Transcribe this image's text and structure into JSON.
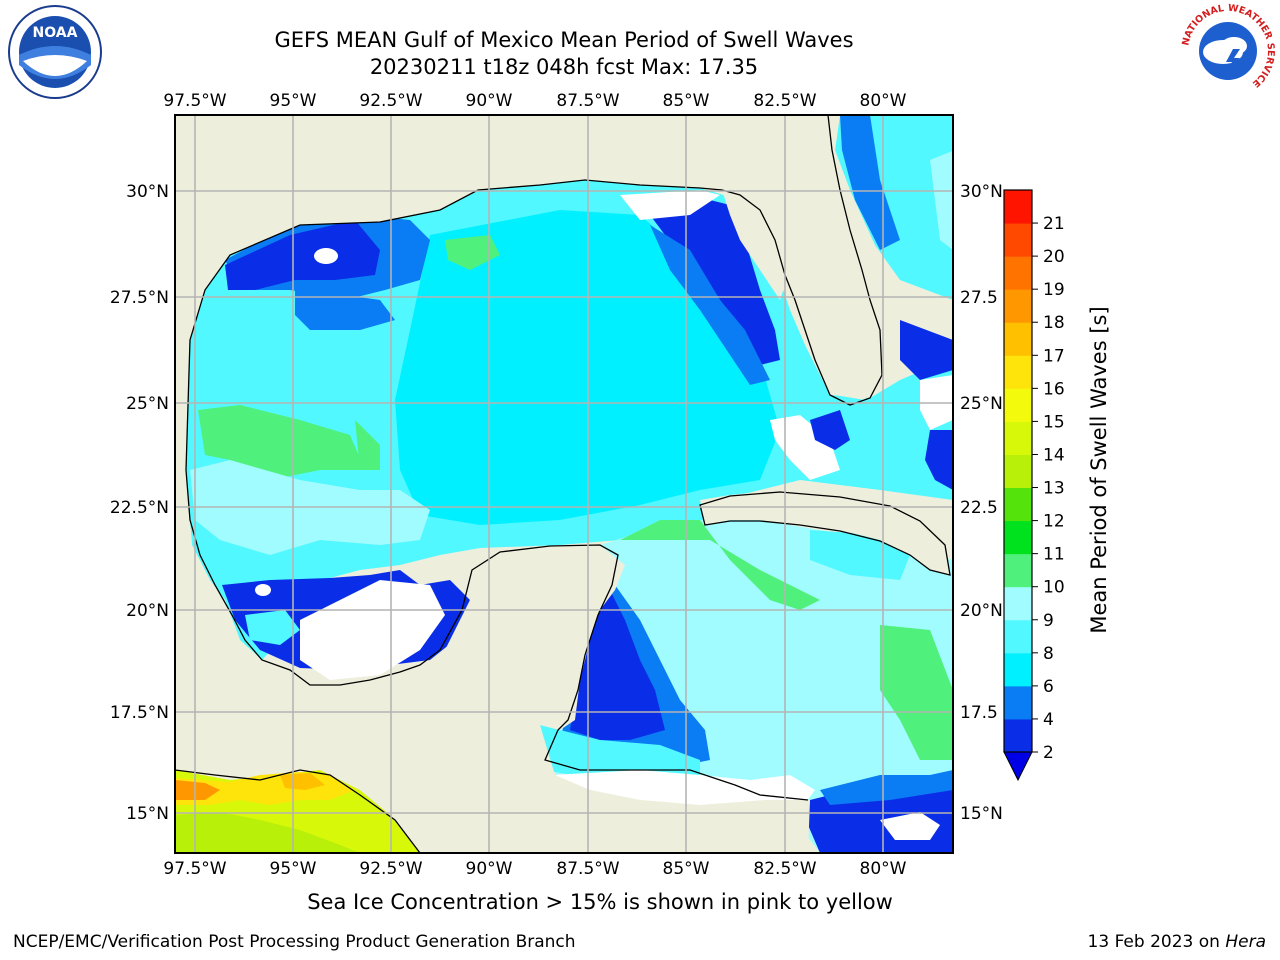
{
  "header": {
    "title_line1": "GEFS MEAN Gulf of Mexico Mean Period of Swell Waves",
    "title_line2": "20230211 t18z 048h fcst   Max: 17.35"
  },
  "map": {
    "lon_ticks": [
      "97.5°W",
      "95°W",
      "92.5°W",
      "90°W",
      "87.5°W",
      "85°W",
      "82.5°W",
      "80°W"
    ],
    "lat_ticks_left": [
      "30°N",
      "27.5°N",
      "25°N",
      "22.5°N",
      "20°N",
      "17.5°N",
      "15°N"
    ],
    "lat_ticks_right": [
      "30°N",
      "27.5",
      "25°N",
      "22.5",
      "20°N",
      "17.5",
      "15°N"
    ],
    "colors": {
      "land": "#eeeedc",
      "coast": "#000000",
      "grid": "#b4b4b4"
    }
  },
  "colorbar": {
    "label": "Mean Period of Swell Waves [s]",
    "ticks": [
      "2",
      "4",
      "6",
      "8",
      "9",
      "10",
      "11",
      "12",
      "13",
      "14",
      "15",
      "16",
      "17",
      "18",
      "19",
      "20",
      "21"
    ],
    "colors": [
      "#0a2ee8",
      "#0a7cf4",
      "#00f0ff",
      "#52f8ff",
      "#a0fcff",
      "#50f07c",
      "#00e21e",
      "#54e40c",
      "#b8f00a",
      "#d8f80a",
      "#f4fa0c",
      "#fee40a",
      "#ffc000",
      "#ff9800",
      "#ff7400",
      "#ff4800",
      "#ff1400"
    ],
    "under_color": "#0000e6"
  },
  "caption": "Sea Ice Concentration > 15% is shown in pink to yellow",
  "footer": {
    "left": "NCEP/EMC/Verification Post Processing Product Generation Branch",
    "right_prefix": "13 Feb 2023 on ",
    "right_italic": "Hera"
  },
  "logos": {
    "left": "noaa-logo",
    "right": "nws-logo",
    "right_ring_text": "NATIONAL WEATHER SERVICE"
  }
}
